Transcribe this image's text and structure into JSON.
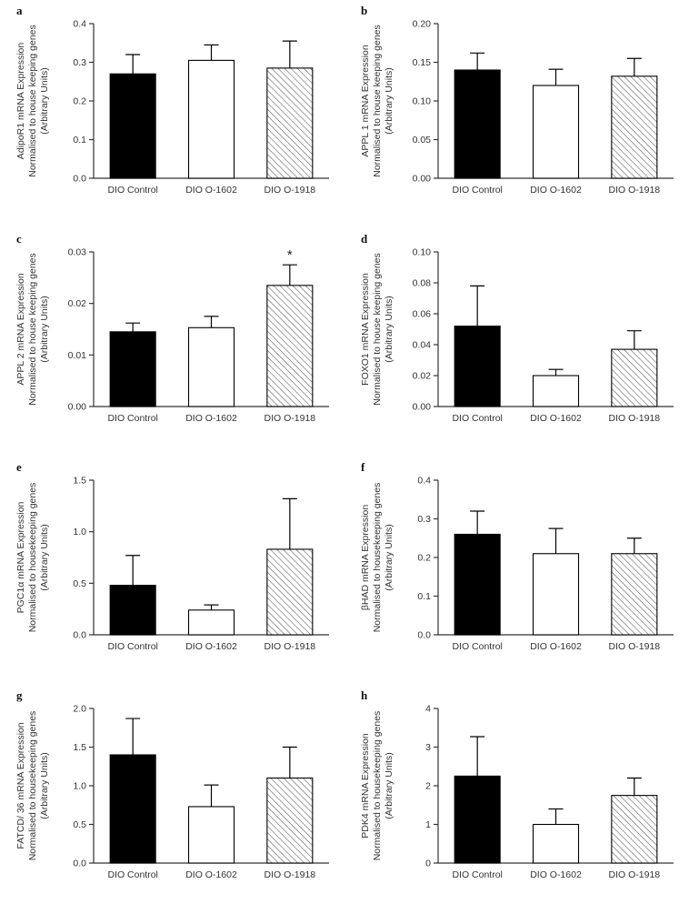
{
  "page": {
    "background": "#ffffff"
  },
  "bar_styles": [
    "black",
    "white",
    "hatched"
  ],
  "colors": {
    "bar_black": "#000000",
    "bar_white": "#ffffff",
    "hatch_line": "#555555",
    "axis": "#333333"
  },
  "chart_data": [
    {
      "type": "bar",
      "panel": "a",
      "ylabel_lines": [
        "AdipoR1 mRNA Expression",
        "Normalised to house keeping genes",
        "(Arbitrary Units)"
      ],
      "categories": [
        "DIO Control",
        "DIO O-1602",
        "DIO O-1918"
      ],
      "values": [
        0.27,
        0.305,
        0.285
      ],
      "errors": [
        0.05,
        0.04,
        0.07
      ],
      "ylim": [
        0,
        0.4
      ],
      "yticks": [
        0,
        0.1,
        0.2,
        0.3,
        0.4
      ],
      "ytick_labels": [
        "0.0",
        "0.1",
        "0.2",
        "0.3",
        "0.4"
      ],
      "annotations": []
    },
    {
      "type": "bar",
      "panel": "b",
      "ylabel_lines": [
        "APPL 1 mRNA Expression",
        "Normalised to house keeping genes",
        "(Arbitrary Units)"
      ],
      "categories": [
        "DIO Control",
        "DIO O-1602",
        "DIO O-1918"
      ],
      "values": [
        0.14,
        0.12,
        0.132
      ],
      "errors": [
        0.022,
        0.021,
        0.023
      ],
      "ylim": [
        0,
        0.2
      ],
      "yticks": [
        0,
        0.05,
        0.1,
        0.15,
        0.2
      ],
      "ytick_labels": [
        "0.00",
        "0.05",
        "0.10",
        "0.15",
        "0.20"
      ],
      "annotations": []
    },
    {
      "type": "bar",
      "panel": "c",
      "ylabel_lines": [
        "APPL 2 mRNA Expression",
        "Normalised to house keeping genes",
        "(Arbitrary Units)"
      ],
      "categories": [
        "DIO Control",
        "DIO O-1602",
        "DIO O-1918"
      ],
      "values": [
        0.0145,
        0.0153,
        0.0235
      ],
      "errors": [
        0.0017,
        0.0022,
        0.004
      ],
      "ylim": [
        0,
        0.03
      ],
      "yticks": [
        0,
        0.01,
        0.02,
        0.03
      ],
      "ytick_labels": [
        "0.00",
        "0.01",
        "0.02",
        "0.03"
      ],
      "annotations": [
        {
          "bar": 2,
          "text": "*"
        }
      ]
    },
    {
      "type": "bar",
      "panel": "d",
      "ylabel_lines": [
        "FOXO1 mRNA Expression",
        "Normalised to house keeping genes",
        "(Arbitrary Units)"
      ],
      "categories": [
        "DIO Control",
        "DIO O-1602",
        "DIO O-1918"
      ],
      "values": [
        0.052,
        0.02,
        0.037
      ],
      "errors": [
        0.026,
        0.004,
        0.012
      ],
      "ylim": [
        0,
        0.1
      ],
      "yticks": [
        0,
        0.02,
        0.04,
        0.06,
        0.08,
        0.1
      ],
      "ytick_labels": [
        "0.00",
        "0.02",
        "0.04",
        "0.06",
        "0.08",
        "0.10"
      ],
      "annotations": []
    },
    {
      "type": "bar",
      "panel": "e",
      "ylabel_lines": [
        "PGC1α mRNA Expression",
        "Normalised to housekeeping genes",
        "(Arbitrary Units)"
      ],
      "categories": [
        "DIO Control",
        "DIO O-1602",
        "DIO O-1918"
      ],
      "values": [
        0.48,
        0.24,
        0.83
      ],
      "errors": [
        0.29,
        0.05,
        0.49
      ],
      "ylim": [
        0,
        1.5
      ],
      "yticks": [
        0,
        0.5,
        1.0,
        1.5
      ],
      "ytick_labels": [
        "0.0",
        "0.5",
        "1.0",
        "1.5"
      ],
      "annotations": []
    },
    {
      "type": "bar",
      "panel": "f",
      "ylabel_lines": [
        "βHAD mRNA Expression",
        "Normalised to housekeeping genes",
        "(Arbitrary Units)"
      ],
      "categories": [
        "DIO Control",
        "DIO O-1602",
        "DIO O-1918"
      ],
      "values": [
        0.26,
        0.21,
        0.21
      ],
      "errors": [
        0.06,
        0.065,
        0.04
      ],
      "ylim": [
        0,
        0.4
      ],
      "yticks": [
        0,
        0.1,
        0.2,
        0.3,
        0.4
      ],
      "ytick_labels": [
        "0.0",
        "0.1",
        "0.2",
        "0.3",
        "0.4"
      ],
      "annotations": []
    },
    {
      "type": "bar",
      "panel": "g",
      "ylabel_lines": [
        "FATCD/ 36 mRNA Expression",
        "Normalised to housekeeping genes",
        "(Arbitrary Units)"
      ],
      "categories": [
        "DIO Control",
        "DIO O-1602",
        "DIO O-1918"
      ],
      "values": [
        1.4,
        0.73,
        1.1
      ],
      "errors": [
        0.47,
        0.28,
        0.4
      ],
      "ylim": [
        0,
        2.0
      ],
      "yticks": [
        0,
        0.5,
        1.0,
        1.5,
        2.0
      ],
      "ytick_labels": [
        "0.0",
        "0.5",
        "1.0",
        "1.5",
        "2.0"
      ],
      "annotations": []
    },
    {
      "type": "bar",
      "panel": "h",
      "ylabel_lines": [
        "PDK4 mRNA Expression",
        "Normalised to housekeeping genes",
        "(Arbitrary Units)"
      ],
      "categories": [
        "DIO Control",
        "DIO O-1602",
        "DIO O-1918"
      ],
      "values": [
        2.25,
        1.0,
        1.75
      ],
      "errors": [
        1.02,
        0.4,
        0.45
      ],
      "ylim": [
        0,
        4
      ],
      "yticks": [
        0,
        1,
        2,
        3,
        4
      ],
      "ytick_labels": [
        "0",
        "1",
        "2",
        "3",
        "4"
      ],
      "annotations": []
    }
  ]
}
